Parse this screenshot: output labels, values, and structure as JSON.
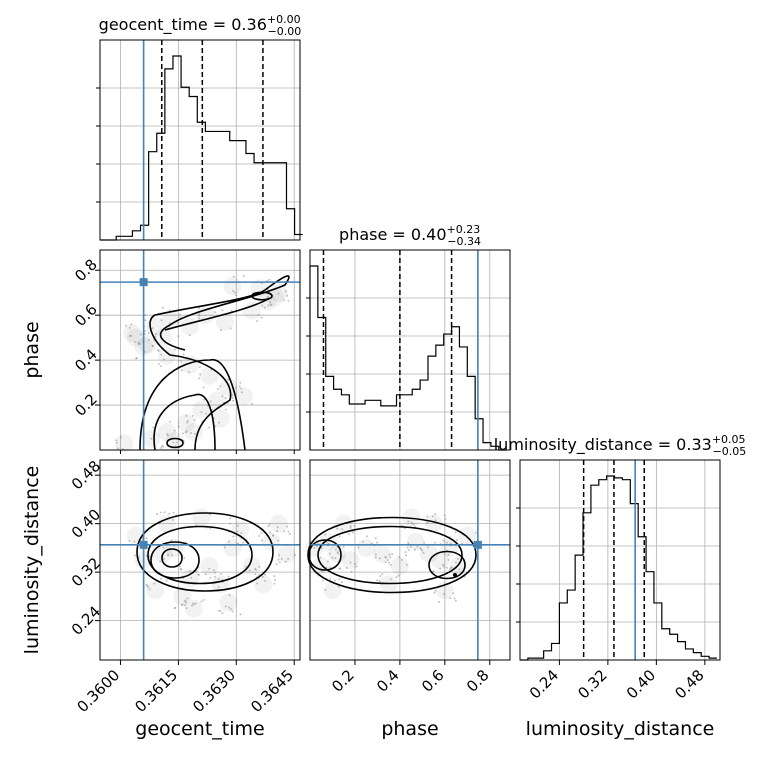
{
  "chart_data": {
    "type": "corner",
    "parameters": [
      "geocent_time",
      "phase",
      "luminosity_distance"
    ],
    "truths": {
      "geocent_time": 0.3606,
      "phase": 0.747,
      "luminosity_distance": 0.365
    },
    "titles": [
      {
        "param": "geocent_time",
        "base": "geocent_time = 0.36",
        "sup": "+0.00",
        "sub": "−0.00"
      },
      {
        "param": "phase",
        "base": "phase = 0.40",
        "sup": "+0.23",
        "sub": "−0.34"
      },
      {
        "param": "luminosity_distance",
        "base": "luminosity_distance = 0.33",
        "sup": "+0.05",
        "sub": "−0.05"
      }
    ],
    "axis_labels": {
      "geocent_time": "geocent_time",
      "phase": "phase",
      "luminosity_distance": "luminosity_distance"
    },
    "ranges": {
      "geocent_time": [
        0.35947,
        0.36465
      ],
      "phase": [
        0.0,
        0.89
      ],
      "luminosity_distance": [
        0.175,
        0.505
      ]
    },
    "ticks": {
      "geocent_time": {
        "values": [
          0.36,
          0.3615,
          0.363,
          0.3645
        ],
        "labels": [
          "0.3600",
          "0.3615",
          "0.3630",
          "0.3645"
        ]
      },
      "phase": {
        "values": [
          0.2,
          0.4,
          0.6,
          0.8
        ],
        "labels": [
          "0.2",
          "0.4",
          "0.6",
          "0.8"
        ]
      },
      "luminosity_distance": {
        "values": [
          0.24,
          0.32,
          0.4,
          0.48
        ],
        "labels": [
          "0.24",
          "0.32",
          "0.40",
          "0.48"
        ]
      }
    },
    "quantiles": {
      "geocent_time": [
        0.36107,
        0.36212,
        0.36369
      ],
      "phase": [
        0.06,
        0.4,
        0.63
      ],
      "luminosity_distance": [
        0.28,
        0.33,
        0.38
      ]
    },
    "histograms": {
      "geocent_time": [
        {
          "x": 0.35947,
          "y": 0
        },
        {
          "x": 0.35968,
          "y": 0
        },
        {
          "x": 0.35989,
          "y": 0.02
        },
        {
          "x": 0.3601,
          "y": 0.02
        },
        {
          "x": 0.36031,
          "y": 0.05
        },
        {
          "x": 0.36052,
          "y": 0.08
        },
        {
          "x": 0.36073,
          "y": 0.48
        },
        {
          "x": 0.36094,
          "y": 0.58
        },
        {
          "x": 0.36115,
          "y": 0.93
        },
        {
          "x": 0.36136,
          "y": 1.0
        },
        {
          "x": 0.36157,
          "y": 0.83
        },
        {
          "x": 0.36178,
          "y": 0.78
        },
        {
          "x": 0.36199,
          "y": 0.64
        },
        {
          "x": 0.3622,
          "y": 0.59
        },
        {
          "x": 0.36241,
          "y": 0.59
        },
        {
          "x": 0.36262,
          "y": 0.59
        },
        {
          "x": 0.36283,
          "y": 0.54
        },
        {
          "x": 0.36304,
          "y": 0.54
        },
        {
          "x": 0.36325,
          "y": 0.47
        },
        {
          "x": 0.36346,
          "y": 0.42
        },
        {
          "x": 0.36367,
          "y": 0.42
        },
        {
          "x": 0.36388,
          "y": 0.42
        },
        {
          "x": 0.36409,
          "y": 0.42
        },
        {
          "x": 0.3643,
          "y": 0.17
        },
        {
          "x": 0.36451,
          "y": 0.03
        }
      ],
      "phase": [
        {
          "x": 0.0,
          "y": 1.0
        },
        {
          "x": 0.035,
          "y": 0.72
        },
        {
          "x": 0.07,
          "y": 0.4
        },
        {
          "x": 0.105,
          "y": 0.33
        },
        {
          "x": 0.14,
          "y": 0.3
        },
        {
          "x": 0.175,
          "y": 0.25
        },
        {
          "x": 0.21,
          "y": 0.25
        },
        {
          "x": 0.245,
          "y": 0.27
        },
        {
          "x": 0.28,
          "y": 0.27
        },
        {
          "x": 0.315,
          "y": 0.24
        },
        {
          "x": 0.35,
          "y": 0.24
        },
        {
          "x": 0.385,
          "y": 0.3
        },
        {
          "x": 0.42,
          "y": 0.3
        },
        {
          "x": 0.455,
          "y": 0.33
        },
        {
          "x": 0.49,
          "y": 0.38
        },
        {
          "x": 0.525,
          "y": 0.51
        },
        {
          "x": 0.56,
          "y": 0.57
        },
        {
          "x": 0.595,
          "y": 0.63
        },
        {
          "x": 0.63,
          "y": 0.67
        },
        {
          "x": 0.665,
          "y": 0.56
        },
        {
          "x": 0.7,
          "y": 0.4
        },
        {
          "x": 0.735,
          "y": 0.17
        },
        {
          "x": 0.77,
          "y": 0.04
        },
        {
          "x": 0.805,
          "y": 0.02
        },
        {
          "x": 0.84,
          "y": 0.0
        }
      ],
      "luminosity_distance": [
        {
          "x": 0.175,
          "y": 0
        },
        {
          "x": 0.188,
          "y": 0.01
        },
        {
          "x": 0.201,
          "y": 0.01
        },
        {
          "x": 0.214,
          "y": 0.05
        },
        {
          "x": 0.227,
          "y": 0.09
        },
        {
          "x": 0.24,
          "y": 0.31
        },
        {
          "x": 0.253,
          "y": 0.38
        },
        {
          "x": 0.266,
          "y": 0.57
        },
        {
          "x": 0.279,
          "y": 0.8
        },
        {
          "x": 0.292,
          "y": 0.95
        },
        {
          "x": 0.305,
          "y": 0.98
        },
        {
          "x": 0.318,
          "y": 1.0
        },
        {
          "x": 0.331,
          "y": 0.99
        },
        {
          "x": 0.344,
          "y": 0.98
        },
        {
          "x": 0.357,
          "y": 0.85
        },
        {
          "x": 0.37,
          "y": 0.67
        },
        {
          "x": 0.383,
          "y": 0.48
        },
        {
          "x": 0.396,
          "y": 0.31
        },
        {
          "x": 0.409,
          "y": 0.17
        },
        {
          "x": 0.422,
          "y": 0.14
        },
        {
          "x": 0.435,
          "y": 0.1
        },
        {
          "x": 0.448,
          "y": 0.06
        },
        {
          "x": 0.461,
          "y": 0.04
        },
        {
          "x": 0.474,
          "y": 0.02
        },
        {
          "x": 0.487,
          "y": 0.01
        }
      ]
    },
    "scatter": {
      "geocent_time_vs_phase": [
        [
          0.3608,
          0.05
        ],
        [
          0.3614,
          0.04
        ],
        [
          0.3612,
          0.08
        ],
        [
          0.3617,
          0.12
        ],
        [
          0.3621,
          0.18
        ],
        [
          0.3625,
          0.22
        ],
        [
          0.3628,
          0.28
        ],
        [
          0.3623,
          0.33
        ],
        [
          0.3618,
          0.38
        ],
        [
          0.3612,
          0.42
        ],
        [
          0.3606,
          0.46
        ],
        [
          0.3603,
          0.52
        ],
        [
          0.3609,
          0.55
        ],
        [
          0.3618,
          0.55
        ],
        [
          0.3627,
          0.57
        ],
        [
          0.3634,
          0.62
        ],
        [
          0.3638,
          0.66
        ],
        [
          0.3641,
          0.7
        ],
        [
          0.3636,
          0.72
        ],
        [
          0.3629,
          0.73
        ],
        [
          0.3604,
          0.5
        ],
        [
          0.3607,
          0.47
        ],
        [
          0.3632,
          0.24
        ],
        [
          0.3626,
          0.14
        ],
        [
          0.3619,
          0.08
        ],
        [
          0.3601,
          0.03
        ],
        [
          0.3622,
          0.6
        ],
        [
          0.3613,
          0.58
        ],
        [
          0.364,
          0.68
        ],
        [
          0.3611,
          0.5
        ]
      ],
      "geocent_time_vs_luminosity_distance": [
        [
          0.3606,
          0.34
        ],
        [
          0.3611,
          0.35
        ],
        [
          0.3614,
          0.36
        ],
        [
          0.3618,
          0.31
        ],
        [
          0.3623,
          0.33
        ],
        [
          0.3629,
          0.36
        ],
        [
          0.3634,
          0.33
        ],
        [
          0.3639,
          0.37
        ],
        [
          0.3643,
          0.35
        ],
        [
          0.3609,
          0.29
        ],
        [
          0.3616,
          0.28
        ],
        [
          0.3626,
          0.3
        ],
        [
          0.3631,
          0.39
        ],
        [
          0.3621,
          0.41
        ],
        [
          0.3612,
          0.4
        ],
        [
          0.3604,
          0.38
        ],
        [
          0.3637,
          0.3
        ],
        [
          0.3641,
          0.4
        ],
        [
          0.3619,
          0.26
        ],
        [
          0.3628,
          0.27
        ]
      ],
      "phase_vs_luminosity_distance": [
        [
          0.02,
          0.36
        ],
        [
          0.05,
          0.33
        ],
        [
          0.08,
          0.37
        ],
        [
          0.12,
          0.35
        ],
        [
          0.18,
          0.34
        ],
        [
          0.25,
          0.36
        ],
        [
          0.32,
          0.35
        ],
        [
          0.4,
          0.33
        ],
        [
          0.47,
          0.37
        ],
        [
          0.53,
          0.35
        ],
        [
          0.58,
          0.34
        ],
        [
          0.62,
          0.36
        ],
        [
          0.66,
          0.33
        ],
        [
          0.7,
          0.38
        ],
        [
          0.1,
          0.29
        ],
        [
          0.15,
          0.4
        ],
        [
          0.55,
          0.4
        ],
        [
          0.6,
          0.29
        ],
        [
          0.35,
          0.3
        ],
        [
          0.45,
          0.41
        ]
      ]
    }
  }
}
